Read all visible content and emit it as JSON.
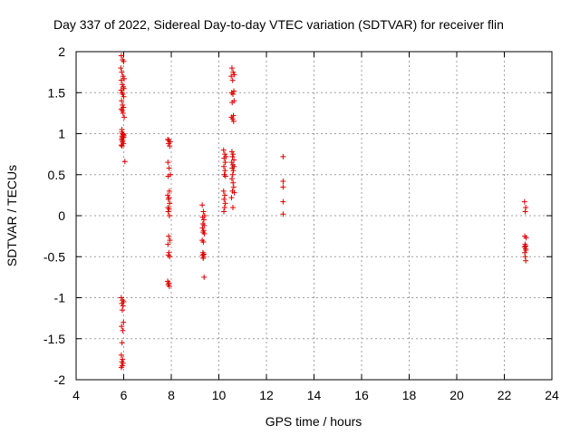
{
  "chart_data": {
    "type": "scatter",
    "title": "Day 337 of 2022, Sidereal Day-to-day VTEC variation (SDTVAR) for receiver flin",
    "xlabel": "GPS time / hours",
    "ylabel": "SDTVAR / TECUs",
    "xlim": [
      4,
      24
    ],
    "ylim": [
      -2,
      2
    ],
    "xticks": [
      "4",
      "6",
      "8",
      "10",
      "12",
      "14",
      "16",
      "18",
      "20",
      "22",
      "24"
    ],
    "yticks": [
      "2",
      "1.5",
      "1",
      "0.5",
      "0",
      "-0.5",
      "-1",
      "-1.5",
      "-2"
    ],
    "grid": true,
    "marker": "+",
    "color": "#dd0000",
    "series": [
      {
        "name": "SDTVAR",
        "x": [
          5.9,
          5.95,
          6.0,
          5.88,
          5.92,
          5.97,
          6.02,
          5.9,
          5.94,
          5.98,
          6.01,
          5.89,
          5.93,
          5.96,
          6.0,
          5.91,
          5.95,
          5.99,
          5.9,
          5.94,
          5.97,
          6.02,
          5.92,
          5.96,
          6.0,
          5.93,
          5.97,
          5.91,
          5.95,
          5.99,
          5.9,
          5.94,
          5.98,
          5.92,
          5.96,
          6.0,
          5.93,
          6.05,
          5.9,
          5.95,
          6.0,
          5.92,
          5.97,
          5.94,
          5.99,
          5.91,
          5.96,
          5.93,
          5.9,
          5.95,
          5.92,
          5.97,
          5.94,
          5.9,
          7.85,
          7.9,
          7.95,
          7.88,
          7.93,
          7.86,
          7.91,
          7.96,
          7.87,
          7.92,
          7.85,
          7.9,
          7.88,
          7.93,
          7.86,
          7.91,
          7.87,
          7.92,
          7.89,
          7.94,
          7.86,
          7.9,
          7.88,
          7.93,
          7.85,
          7.9,
          7.87,
          7.92,
          9.3,
          9.35,
          9.4,
          9.32,
          9.37,
          9.33,
          9.38,
          9.31,
          9.36,
          9.34,
          9.39,
          9.3,
          9.35,
          9.33,
          9.37,
          9.32,
          9.36,
          9.34,
          9.38,
          10.2,
          10.25,
          10.3,
          10.22,
          10.27,
          10.21,
          10.26,
          10.23,
          10.28,
          10.2,
          10.25,
          10.22,
          10.27,
          10.24,
          10.21,
          10.55,
          10.6,
          10.65,
          10.52,
          10.58,
          10.63,
          10.54,
          10.59,
          10.64,
          10.56,
          10.61,
          10.53,
          10.58,
          10.62,
          10.55,
          10.6,
          10.57,
          10.63,
          10.54,
          10.59,
          10.64,
          10.56,
          10.61,
          10.58,
          10.55,
          10.6,
          10.62,
          10.57,
          10.65,
          10.53,
          10.59,
          12.7,
          12.7,
          12.7,
          12.7,
          12.7,
          22.85,
          22.9,
          22.88,
          22.86,
          22.92,
          22.87,
          22.9,
          22.85,
          22.89,
          22.91,
          22.86,
          22.88,
          22.9
        ],
        "y": [
          1.95,
          1.9,
          1.88,
          1.8,
          1.75,
          1.7,
          1.67,
          1.65,
          1.6,
          1.57,
          1.55,
          1.53,
          1.5,
          1.48,
          1.45,
          1.4,
          1.35,
          1.32,
          1.3,
          1.28,
          1.25,
          1.2,
          1.05,
          1.0,
          0.98,
          0.97,
          0.95,
          0.93,
          0.9,
          0.88,
          0.86,
          0.95,
          0.99,
          1.02,
          0.92,
          0.96,
          0.85,
          0.66,
          -1.0,
          -1.03,
          -1.05,
          -1.07,
          -1.1,
          -1.15,
          -1.3,
          -1.35,
          -1.4,
          -1.55,
          -1.7,
          -1.75,
          -1.78,
          -1.8,
          -1.83,
          -1.85,
          0.93,
          0.92,
          0.9,
          0.88,
          0.85,
          0.65,
          0.58,
          0.5,
          0.48,
          0.3,
          0.25,
          0.22,
          0.2,
          0.15,
          0.1,
          0.08,
          0.05,
          0.0,
          -0.25,
          -0.3,
          -0.35,
          -0.45,
          -0.48,
          -0.5,
          -0.8,
          -0.82,
          -0.84,
          -0.86,
          0.13,
          0.05,
          0.0,
          -0.02,
          -0.05,
          -0.1,
          -0.12,
          -0.15,
          -0.18,
          -0.2,
          -0.22,
          -0.3,
          -0.32,
          -0.45,
          -0.47,
          -0.48,
          -0.5,
          -0.52,
          -0.75,
          0.8,
          0.75,
          0.72,
          0.7,
          0.65,
          0.6,
          0.55,
          0.5,
          0.48,
          0.3,
          0.25,
          0.2,
          0.15,
          0.1,
          0.05,
          1.8,
          1.75,
          1.72,
          1.7,
          1.65,
          1.52,
          1.5,
          1.48,
          1.4,
          1.38,
          1.22,
          1.2,
          1.18,
          1.15,
          0.78,
          0.75,
          0.72,
          0.68,
          0.65,
          0.62,
          0.6,
          0.58,
          0.55,
          0.5,
          0.45,
          0.4,
          0.35,
          0.3,
          0.28,
          0.22,
          0.1,
          0.72,
          0.42,
          0.35,
          0.17,
          0.02,
          0.17,
          0.1,
          0.05,
          -0.25,
          -0.27,
          -0.35,
          -0.37,
          -0.38,
          -0.4,
          -0.42,
          -0.45,
          -0.5,
          -0.55
        ]
      }
    ]
  }
}
